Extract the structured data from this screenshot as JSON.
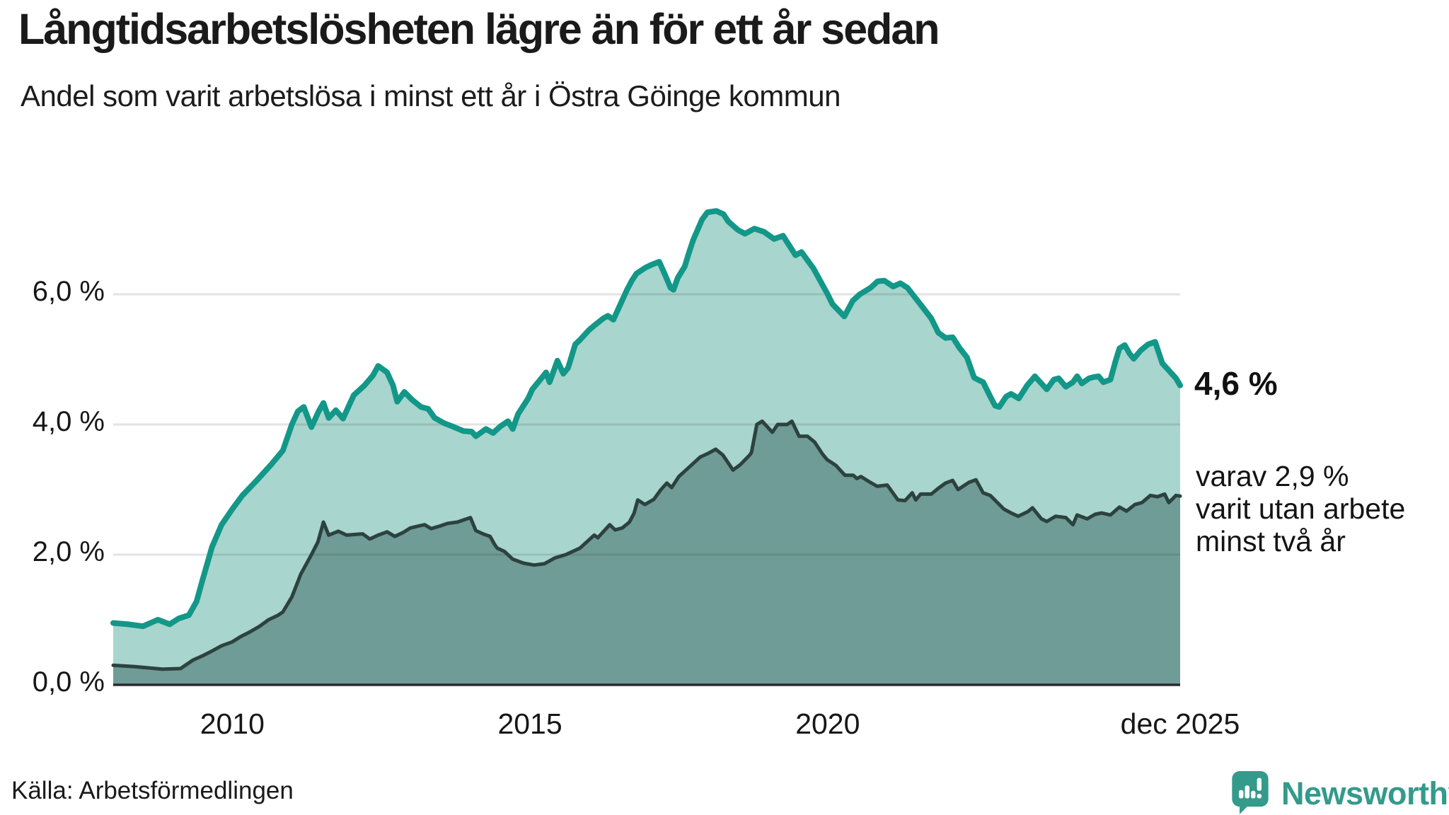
{
  "header": {
    "title": "Långtidsarbetslösheten lägre än för ett år sedan",
    "subtitle": "Andel som varit arbetslösa i minst ett år i Östra Göinge kommun"
  },
  "annotations": {
    "value_label": "4,6 %",
    "note": "varav 2,9 %\nvarit utan arbete\nminst två år"
  },
  "footer": {
    "source": "Källa: Arbetsförmedlingen",
    "brand": "Newsworthy"
  },
  "colors": {
    "line_1yr": "#129788",
    "fill_1yr": "#a8d5cd",
    "line_2yr": "#2d423f",
    "fill_2yr": "#6f9c96",
    "grid": "rgba(40,40,40,0.13)",
    "baseline": "#2a2a2a",
    "brand_teal": "#349a8b"
  },
  "chart_data": {
    "type": "area",
    "title": "Långtidsarbetslösheten lägre än för ett år sedan",
    "subtitle": "Andel som varit arbetslösa i minst ett år i Östra Göinge kommun",
    "xlabel": "",
    "ylabel": "",
    "x_range": [
      2008.0,
      2025.92
    ],
    "ylim": [
      0,
      7.75
    ],
    "grid": "horizontal",
    "legend_position": "right-annotations",
    "y_ticks": [
      {
        "value": 0,
        "label": "0,0 %"
      },
      {
        "value": 2,
        "label": "2,0 %"
      },
      {
        "value": 4,
        "label": "4,0 %"
      },
      {
        "value": 6,
        "label": "6,0 %"
      }
    ],
    "x_ticks": [
      {
        "year": 2010.0,
        "label": "2010"
      },
      {
        "year": 2015.0,
        "label": "2015"
      },
      {
        "year": 2020.0,
        "label": "2020"
      },
      {
        "year": 2025.92,
        "label": "dec 2025"
      }
    ],
    "series": [
      {
        "name": "Arbetslösa minst ett år",
        "end_value_pct": 4.6,
        "points": [
          [
            2008.0,
            0.95
          ],
          [
            2008.25,
            0.93
          ],
          [
            2008.5,
            0.9
          ],
          [
            2008.75,
            1.0
          ],
          [
            2008.95,
            0.93
          ],
          [
            2009.1,
            1.02
          ],
          [
            2009.27,
            1.07
          ],
          [
            2009.4,
            1.28
          ],
          [
            2009.5,
            1.61
          ],
          [
            2009.66,
            2.12
          ],
          [
            2009.82,
            2.46
          ],
          [
            2010.0,
            2.7
          ],
          [
            2010.17,
            2.91
          ],
          [
            2010.4,
            3.13
          ],
          [
            2010.65,
            3.38
          ],
          [
            2010.85,
            3.6
          ],
          [
            2011.0,
            4.0
          ],
          [
            2011.1,
            4.2
          ],
          [
            2011.2,
            4.27
          ],
          [
            2011.33,
            3.96
          ],
          [
            2011.45,
            4.2
          ],
          [
            2011.53,
            4.33
          ],
          [
            2011.62,
            4.1
          ],
          [
            2011.74,
            4.22
          ],
          [
            2011.86,
            4.09
          ],
          [
            2012.04,
            4.45
          ],
          [
            2012.22,
            4.6
          ],
          [
            2012.36,
            4.75
          ],
          [
            2012.45,
            4.9
          ],
          [
            2012.6,
            4.8
          ],
          [
            2012.7,
            4.6
          ],
          [
            2012.77,
            4.35
          ],
          [
            2012.89,
            4.5
          ],
          [
            2013.02,
            4.38
          ],
          [
            2013.17,
            4.27
          ],
          [
            2013.29,
            4.24
          ],
          [
            2013.4,
            4.1
          ],
          [
            2013.56,
            4.02
          ],
          [
            2013.7,
            3.97
          ],
          [
            2013.88,
            3.9
          ],
          [
            2014.02,
            3.89
          ],
          [
            2014.09,
            3.82
          ],
          [
            2014.26,
            3.93
          ],
          [
            2014.38,
            3.87
          ],
          [
            2014.5,
            3.97
          ],
          [
            2014.63,
            4.05
          ],
          [
            2014.71,
            3.93
          ],
          [
            2014.8,
            4.16
          ],
          [
            2014.97,
            4.4
          ],
          [
            2015.04,
            4.54
          ],
          [
            2015.21,
            4.73
          ],
          [
            2015.27,
            4.8
          ],
          [
            2015.33,
            4.65
          ],
          [
            2015.46,
            4.98
          ],
          [
            2015.56,
            4.78
          ],
          [
            2015.64,
            4.87
          ],
          [
            2015.76,
            5.23
          ],
          [
            2015.84,
            5.3
          ],
          [
            2015.99,
            5.45
          ],
          [
            2016.08,
            5.52
          ],
          [
            2016.23,
            5.63
          ],
          [
            2016.31,
            5.67
          ],
          [
            2016.4,
            5.61
          ],
          [
            2016.52,
            5.85
          ],
          [
            2016.63,
            6.07
          ],
          [
            2016.71,
            6.21
          ],
          [
            2016.79,
            6.32
          ],
          [
            2016.94,
            6.41
          ],
          [
            2017.03,
            6.45
          ],
          [
            2017.17,
            6.5
          ],
          [
            2017.26,
            6.32
          ],
          [
            2017.36,
            6.1
          ],
          [
            2017.41,
            6.07
          ],
          [
            2017.48,
            6.25
          ],
          [
            2017.6,
            6.43
          ],
          [
            2017.66,
            6.61
          ],
          [
            2017.74,
            6.83
          ],
          [
            2017.89,
            7.15
          ],
          [
            2017.98,
            7.26
          ],
          [
            2018.13,
            7.28
          ],
          [
            2018.25,
            7.23
          ],
          [
            2018.33,
            7.12
          ],
          [
            2018.49,
            6.99
          ],
          [
            2018.61,
            6.93
          ],
          [
            2018.77,
            7.01
          ],
          [
            2018.93,
            6.96
          ],
          [
            2019.1,
            6.85
          ],
          [
            2019.25,
            6.9
          ],
          [
            2019.46,
            6.6
          ],
          [
            2019.56,
            6.65
          ],
          [
            2019.76,
            6.4
          ],
          [
            2019.88,
            6.2
          ],
          [
            2020.0,
            6.0
          ],
          [
            2020.08,
            5.85
          ],
          [
            2020.28,
            5.66
          ],
          [
            2020.42,
            5.9
          ],
          [
            2020.54,
            6.0
          ],
          [
            2020.72,
            6.1
          ],
          [
            2020.84,
            6.2
          ],
          [
            2020.95,
            6.21
          ],
          [
            2021.1,
            6.12
          ],
          [
            2021.22,
            6.17
          ],
          [
            2021.34,
            6.1
          ],
          [
            2021.46,
            5.96
          ],
          [
            2021.58,
            5.82
          ],
          [
            2021.74,
            5.63
          ],
          [
            2021.86,
            5.41
          ],
          [
            2021.98,
            5.33
          ],
          [
            2022.1,
            5.34
          ],
          [
            2022.22,
            5.17
          ],
          [
            2022.34,
            5.03
          ],
          [
            2022.46,
            4.72
          ],
          [
            2022.52,
            4.69
          ],
          [
            2022.61,
            4.65
          ],
          [
            2022.73,
            4.43
          ],
          [
            2022.81,
            4.29
          ],
          [
            2022.88,
            4.27
          ],
          [
            2023.0,
            4.43
          ],
          [
            2023.08,
            4.47
          ],
          [
            2023.21,
            4.4
          ],
          [
            2023.35,
            4.6
          ],
          [
            2023.48,
            4.74
          ],
          [
            2023.68,
            4.54
          ],
          [
            2023.8,
            4.69
          ],
          [
            2023.88,
            4.71
          ],
          [
            2024.0,
            4.58
          ],
          [
            2024.12,
            4.65
          ],
          [
            2024.19,
            4.74
          ],
          [
            2024.27,
            4.63
          ],
          [
            2024.39,
            4.71
          ],
          [
            2024.48,
            4.73
          ],
          [
            2024.55,
            4.74
          ],
          [
            2024.63,
            4.65
          ],
          [
            2024.75,
            4.69
          ],
          [
            2024.83,
            4.96
          ],
          [
            2024.9,
            5.17
          ],
          [
            2024.99,
            5.22
          ],
          [
            2025.07,
            5.09
          ],
          [
            2025.14,
            5.01
          ],
          [
            2025.26,
            5.14
          ],
          [
            2025.38,
            5.23
          ],
          [
            2025.5,
            5.27
          ],
          [
            2025.62,
            4.94
          ],
          [
            2025.73,
            4.83
          ],
          [
            2025.85,
            4.71
          ],
          [
            2025.92,
            4.6
          ]
        ]
      },
      {
        "name": "Arbetslösa minst två år",
        "end_value_pct": 2.9,
        "points": [
          [
            2008.0,
            0.3
          ],
          [
            2008.36,
            0.28
          ],
          [
            2008.83,
            0.24
          ],
          [
            2009.13,
            0.25
          ],
          [
            2009.34,
            0.38
          ],
          [
            2009.51,
            0.45
          ],
          [
            2009.66,
            0.52
          ],
          [
            2009.82,
            0.6
          ],
          [
            2010.0,
            0.66
          ],
          [
            2010.14,
            0.74
          ],
          [
            2010.29,
            0.81
          ],
          [
            2010.46,
            0.9
          ],
          [
            2010.61,
            1.0
          ],
          [
            2010.77,
            1.07
          ],
          [
            2010.85,
            1.12
          ],
          [
            2011.0,
            1.35
          ],
          [
            2011.15,
            1.7
          ],
          [
            2011.33,
            2.0
          ],
          [
            2011.44,
            2.2
          ],
          [
            2011.53,
            2.5
          ],
          [
            2011.62,
            2.3
          ],
          [
            2011.78,
            2.36
          ],
          [
            2011.92,
            2.3
          ],
          [
            2012.19,
            2.32
          ],
          [
            2012.31,
            2.24
          ],
          [
            2012.45,
            2.3
          ],
          [
            2012.6,
            2.35
          ],
          [
            2012.73,
            2.28
          ],
          [
            2012.87,
            2.34
          ],
          [
            2012.99,
            2.41
          ],
          [
            2013.13,
            2.44
          ],
          [
            2013.23,
            2.46
          ],
          [
            2013.34,
            2.4
          ],
          [
            2013.49,
            2.44
          ],
          [
            2013.62,
            2.48
          ],
          [
            2013.78,
            2.5
          ],
          [
            2013.91,
            2.54
          ],
          [
            2014.0,
            2.57
          ],
          [
            2014.09,
            2.37
          ],
          [
            2014.21,
            2.32
          ],
          [
            2014.33,
            2.28
          ],
          [
            2014.41,
            2.15
          ],
          [
            2014.45,
            2.1
          ],
          [
            2014.57,
            2.05
          ],
          [
            2014.71,
            1.93
          ],
          [
            2014.89,
            1.87
          ],
          [
            2015.07,
            1.84
          ],
          [
            2015.24,
            1.86
          ],
          [
            2015.42,
            1.95
          ],
          [
            2015.6,
            2.0
          ],
          [
            2015.84,
            2.1
          ],
          [
            2016.08,
            2.3
          ],
          [
            2016.14,
            2.26
          ],
          [
            2016.34,
            2.46
          ],
          [
            2016.43,
            2.38
          ],
          [
            2016.55,
            2.41
          ],
          [
            2016.67,
            2.5
          ],
          [
            2016.75,
            2.64
          ],
          [
            2016.81,
            2.84
          ],
          [
            2016.93,
            2.77
          ],
          [
            2017.08,
            2.85
          ],
          [
            2017.2,
            3.0
          ],
          [
            2017.3,
            3.1
          ],
          [
            2017.38,
            3.03
          ],
          [
            2017.5,
            3.2
          ],
          [
            2017.68,
            3.35
          ],
          [
            2017.86,
            3.5
          ],
          [
            2017.98,
            3.55
          ],
          [
            2018.12,
            3.62
          ],
          [
            2018.24,
            3.53
          ],
          [
            2018.41,
            3.3
          ],
          [
            2018.53,
            3.38
          ],
          [
            2018.69,
            3.53
          ],
          [
            2018.72,
            3.57
          ],
          [
            2018.81,
            4.0
          ],
          [
            2018.9,
            4.05
          ],
          [
            2019.07,
            3.88
          ],
          [
            2019.16,
            4.0
          ],
          [
            2019.32,
            4.0
          ],
          [
            2019.4,
            4.05
          ],
          [
            2019.52,
            3.82
          ],
          [
            2019.66,
            3.82
          ],
          [
            2019.78,
            3.73
          ],
          [
            2019.91,
            3.55
          ],
          [
            2019.99,
            3.46
          ],
          [
            2020.14,
            3.37
          ],
          [
            2020.29,
            3.22
          ],
          [
            2020.43,
            3.22
          ],
          [
            2020.49,
            3.17
          ],
          [
            2020.56,
            3.2
          ],
          [
            2020.68,
            3.13
          ],
          [
            2020.83,
            3.05
          ],
          [
            2021.0,
            3.07
          ],
          [
            2021.18,
            2.84
          ],
          [
            2021.3,
            2.83
          ],
          [
            2021.42,
            2.95
          ],
          [
            2021.48,
            2.84
          ],
          [
            2021.56,
            2.93
          ],
          [
            2021.74,
            2.93
          ],
          [
            2021.86,
            3.02
          ],
          [
            2021.98,
            3.1
          ],
          [
            2022.1,
            3.14
          ],
          [
            2022.19,
            3.0
          ],
          [
            2022.37,
            3.11
          ],
          [
            2022.49,
            3.15
          ],
          [
            2022.61,
            2.95
          ],
          [
            2022.73,
            2.91
          ],
          [
            2022.85,
            2.8
          ],
          [
            2022.96,
            2.7
          ],
          [
            2023.08,
            2.64
          ],
          [
            2023.2,
            2.59
          ],
          [
            2023.36,
            2.66
          ],
          [
            2023.44,
            2.72
          ],
          [
            2023.59,
            2.55
          ],
          [
            2023.68,
            2.51
          ],
          [
            2023.83,
            2.59
          ],
          [
            2024.0,
            2.57
          ],
          [
            2024.12,
            2.46
          ],
          [
            2024.19,
            2.61
          ],
          [
            2024.36,
            2.55
          ],
          [
            2024.49,
            2.62
          ],
          [
            2024.6,
            2.64
          ],
          [
            2024.75,
            2.61
          ],
          [
            2024.9,
            2.73
          ],
          [
            2025.02,
            2.67
          ],
          [
            2025.16,
            2.77
          ],
          [
            2025.28,
            2.8
          ],
          [
            2025.42,
            2.91
          ],
          [
            2025.54,
            2.89
          ],
          [
            2025.66,
            2.93
          ],
          [
            2025.73,
            2.8
          ],
          [
            2025.85,
            2.91
          ],
          [
            2025.92,
            2.9
          ]
        ]
      }
    ]
  }
}
